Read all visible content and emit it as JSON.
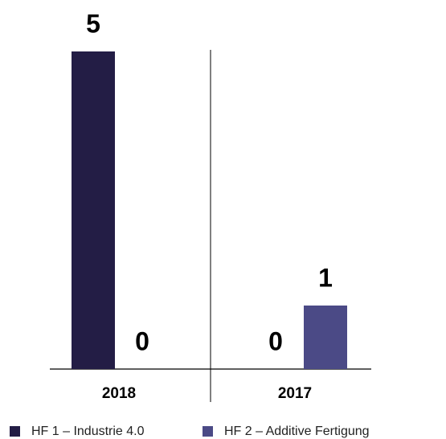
{
  "chart_data": {
    "type": "bar",
    "categories": [
      "2018",
      "2017"
    ],
    "series": [
      {
        "name": "HF 1 – Industrie 4.0",
        "color": "#231d45",
        "values": [
          5,
          0
        ]
      },
      {
        "name": "HF 2 – Additive Fertigung",
        "color": "#4b4a86",
        "values": [
          0,
          1
        ]
      }
    ]
  }
}
